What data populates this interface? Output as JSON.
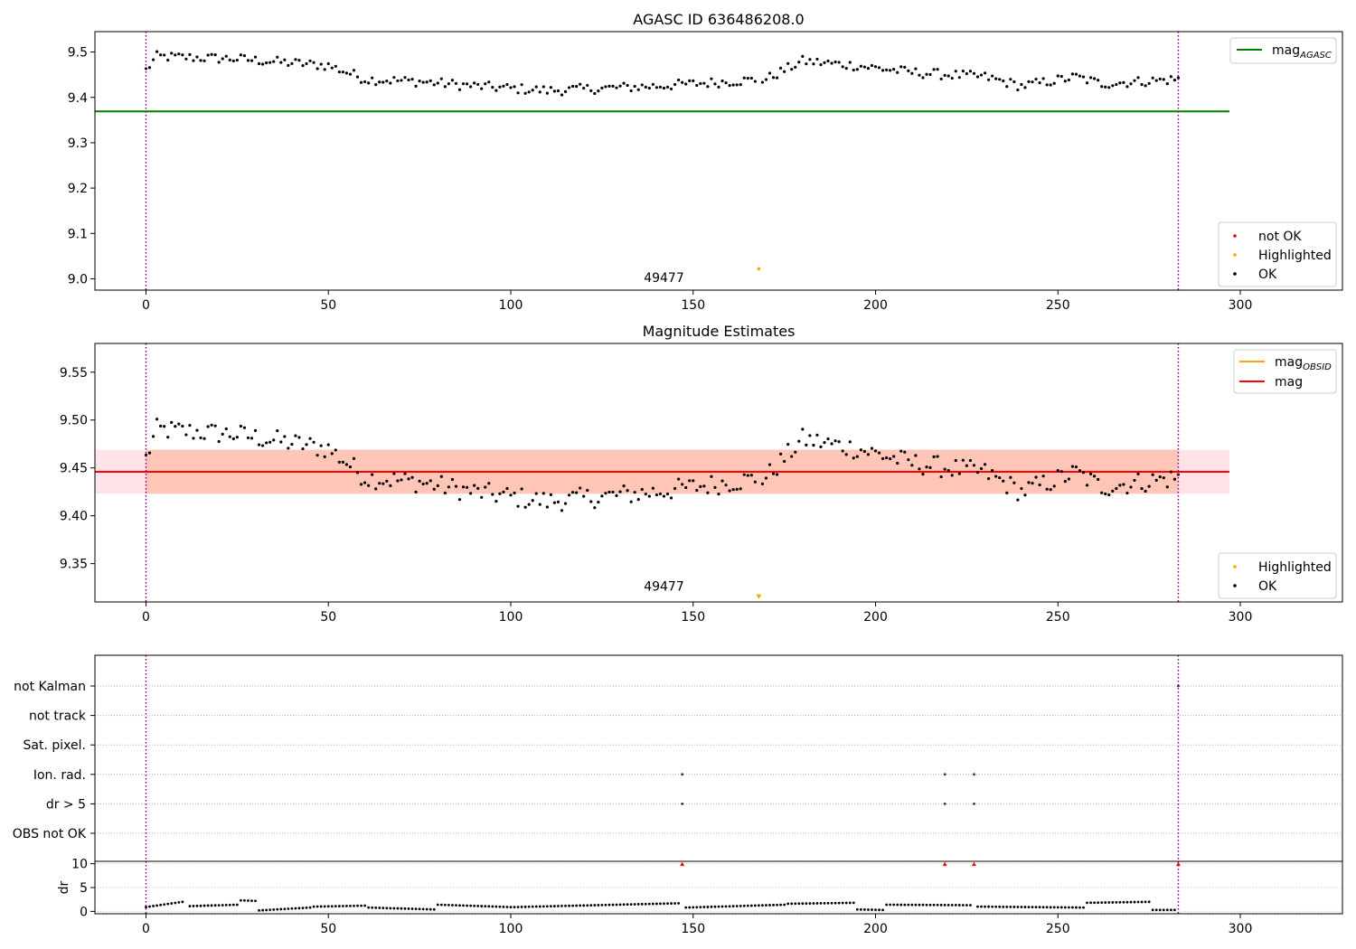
{
  "chart_data": [
    {
      "type": "scatter",
      "title": "AGASC ID 636486208.0",
      "xlim": [
        -14,
        328
      ],
      "ylim": [
        8.975,
        9.545
      ],
      "xticks": [
        0,
        50,
        100,
        150,
        200,
        250,
        300
      ],
      "yticks": [
        9.0,
        9.1,
        9.2,
        9.3,
        9.4,
        9.5
      ],
      "ytick_labels": [
        "9.0",
        "9.1",
        "9.2",
        "9.3",
        "9.4",
        "9.5"
      ],
      "vlines": [
        0,
        283
      ],
      "vline_color": "#800080",
      "annotation": {
        "text": "49477",
        "x": 142,
        "y": 8.993
      },
      "hline": {
        "name": "mag",
        "sub": "AGASC",
        "y": 9.369,
        "x_end": 297,
        "color": "#008000"
      },
      "highlighted": [
        {
          "x": 168,
          "y": 9.022
        }
      ],
      "series_ok": {
        "name": "OK",
        "y_offset": 0.0
      },
      "legend_lines": [
        {
          "label": "mag",
          "sub": "AGASC",
          "color": "#008000",
          "placement": "top-right"
        }
      ],
      "legend_points": [
        {
          "label": "not OK",
          "color": "#ff0000"
        },
        {
          "label": "Highlighted",
          "color": "#ffa500"
        },
        {
          "label": "OK",
          "color": "#000000"
        }
      ]
    },
    {
      "type": "scatter",
      "title": "Magnitude Estimates",
      "xlim": [
        -14,
        328
      ],
      "ylim": [
        9.31,
        9.58
      ],
      "xticks": [
        0,
        50,
        100,
        150,
        200,
        250,
        300
      ],
      "yticks": [
        9.35,
        9.4,
        9.45,
        9.5,
        9.55
      ],
      "ytick_labels": [
        "9.35",
        "9.40",
        "9.45",
        "9.50",
        "9.55"
      ],
      "vlines": [
        0,
        283
      ],
      "vline_color": "#800080",
      "annotation": {
        "text": "49477",
        "x": 142,
        "y": 9.322
      },
      "hline": {
        "name": "mag",
        "y": 9.446,
        "x_end": 297,
        "color": "#ff0000"
      },
      "band_outer": {
        "y0": 9.423,
        "y1": 9.469,
        "x0": -14,
        "x1": 297,
        "color": "#ffc0cb"
      },
      "band_inner": {
        "y0": 9.423,
        "y1": 9.469,
        "x0": 0,
        "x1": 283,
        "color": "#ffa07a"
      },
      "obsid_line": {
        "y": 9.446,
        "color": "#ffa500"
      },
      "highlighted_marker": {
        "x": 168,
        "y": 9.315,
        "shape": "triangle-down"
      },
      "series_ok": {
        "name": "OK",
        "y_offset": 0.0
      },
      "legend_lines": [
        {
          "label": "mag",
          "sub": "OBSID",
          "color": "#ffa500"
        },
        {
          "label": "mag",
          "sub": "",
          "color": "#ff0000"
        }
      ],
      "legend_points": [
        {
          "label": "Highlighted",
          "color": "#ffa500"
        },
        {
          "label": "OK",
          "color": "#000000"
        }
      ]
    },
    {
      "type": "scatter",
      "xlim": [
        -14,
        328
      ],
      "categories": [
        "not Kalman",
        "not track",
        "Sat. pixel.",
        "Ion. rad.",
        "dr > 5",
        "OBS not OK"
      ],
      "vlines": [
        0,
        283
      ],
      "vline_color": "#800080",
      "flags": [
        {
          "category": "Ion. rad.",
          "x": [
            147,
            219,
            227
          ]
        },
        {
          "category": "dr > 5",
          "x": [
            147,
            219,
            227
          ]
        },
        {
          "category": "not Kalman",
          "x": [
            283
          ]
        }
      ]
    },
    {
      "type": "scatter",
      "ylabel": "dr",
      "xlim": [
        -14,
        328
      ],
      "ylim": [
        -0.5,
        10.5
      ],
      "xticks": [
        0,
        50,
        100,
        150,
        200,
        250,
        300
      ],
      "yticks": [
        0,
        5,
        10
      ],
      "ytick_labels": [
        "0",
        "5",
        "10"
      ],
      "vlines": [
        0,
        283
      ],
      "vline_color": "#800080",
      "clipped_markers": {
        "x": [
          147,
          219,
          227,
          283
        ],
        "y": 10,
        "color": "#ff0000"
      },
      "dr_segments": [
        {
          "x0": 0,
          "x1": 10,
          "y0": 0.9,
          "y1": 2.0
        },
        {
          "x0": 12,
          "x1": 25,
          "y0": 1.1,
          "y1": 1.4
        },
        {
          "x0": 26,
          "x1": 30,
          "y0": 2.3,
          "y1": 2.2
        },
        {
          "x0": 31,
          "x1": 45,
          "y0": 0.2,
          "y1": 0.8
        },
        {
          "x0": 46,
          "x1": 60,
          "y0": 1.0,
          "y1": 1.2
        },
        {
          "x0": 61,
          "x1": 79,
          "y0": 0.8,
          "y1": 0.4
        },
        {
          "x0": 80,
          "x1": 100,
          "y0": 1.4,
          "y1": 0.9
        },
        {
          "x0": 101,
          "x1": 146,
          "y0": 0.9,
          "y1": 1.7
        },
        {
          "x0": 148,
          "x1": 175,
          "y0": 0.8,
          "y1": 1.4
        },
        {
          "x0": 176,
          "x1": 194,
          "y0": 1.6,
          "y1": 1.8
        },
        {
          "x0": 195,
          "x1": 202,
          "y0": 0.4,
          "y1": 0.3
        },
        {
          "x0": 203,
          "x1": 226,
          "y0": 1.4,
          "y1": 1.3
        },
        {
          "x0": 228,
          "x1": 257,
          "y0": 1.0,
          "y1": 0.8
        },
        {
          "x0": 258,
          "x1": 275,
          "y0": 1.8,
          "y1": 2.0
        },
        {
          "x0": 276,
          "x1": 282,
          "y0": 0.3,
          "y1": 0.3
        }
      ]
    }
  ]
}
